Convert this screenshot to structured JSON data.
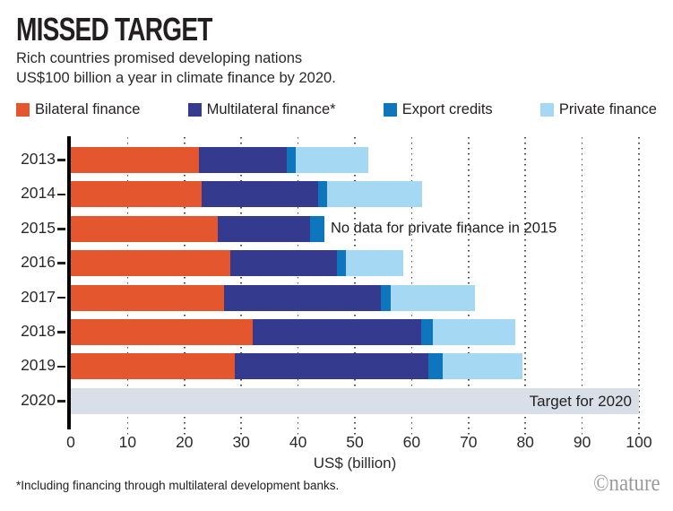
{
  "header": {
    "title": "MISSED TARGET",
    "subtitle_line1": "Rich countries promised developing nations",
    "subtitle_line2": "US$100 billion a year in climate finance by 2020."
  },
  "chart_data": {
    "type": "bar",
    "orientation": "horizontal",
    "stacked": true,
    "categories": [
      "2013",
      "2014",
      "2015",
      "2016",
      "2017",
      "2018",
      "2019"
    ],
    "series": [
      {
        "name": "Bilateral finance",
        "color": "#E4572E",
        "values": [
          22.5,
          23.1,
          25.9,
          28.0,
          27.0,
          32.0,
          28.8
        ]
      },
      {
        "name": "Multilateral finance*",
        "color": "#343B8E",
        "values": [
          15.5,
          20.4,
          16.2,
          18.9,
          27.5,
          29.6,
          34.1
        ]
      },
      {
        "name": "Export credits",
        "color": "#0E76BC",
        "values": [
          1.6,
          1.6,
          2.5,
          1.5,
          1.8,
          2.1,
          2.6
        ]
      },
      {
        "name": "Private finance",
        "color": "#A5D9F3",
        "values": [
          12.8,
          16.7,
          0,
          10.1,
          14.9,
          14.6,
          14.0
        ]
      }
    ],
    "annotation": "No data for private finance in 2015",
    "target_row": {
      "year": "2020",
      "label": "Target for 2020",
      "value": 100,
      "color": "#D8DFE8"
    },
    "xlabel": "US$ (billion)",
    "xlim": [
      0,
      100
    ],
    "xticks": [
      0,
      10,
      20,
      30,
      40,
      50,
      60,
      70,
      80,
      90,
      100
    ],
    "grid": "dotted-vertical",
    "legend_position": "top"
  },
  "footer": {
    "footnote": "*Including financing through multilateral development banks.",
    "credit": "©nature"
  }
}
